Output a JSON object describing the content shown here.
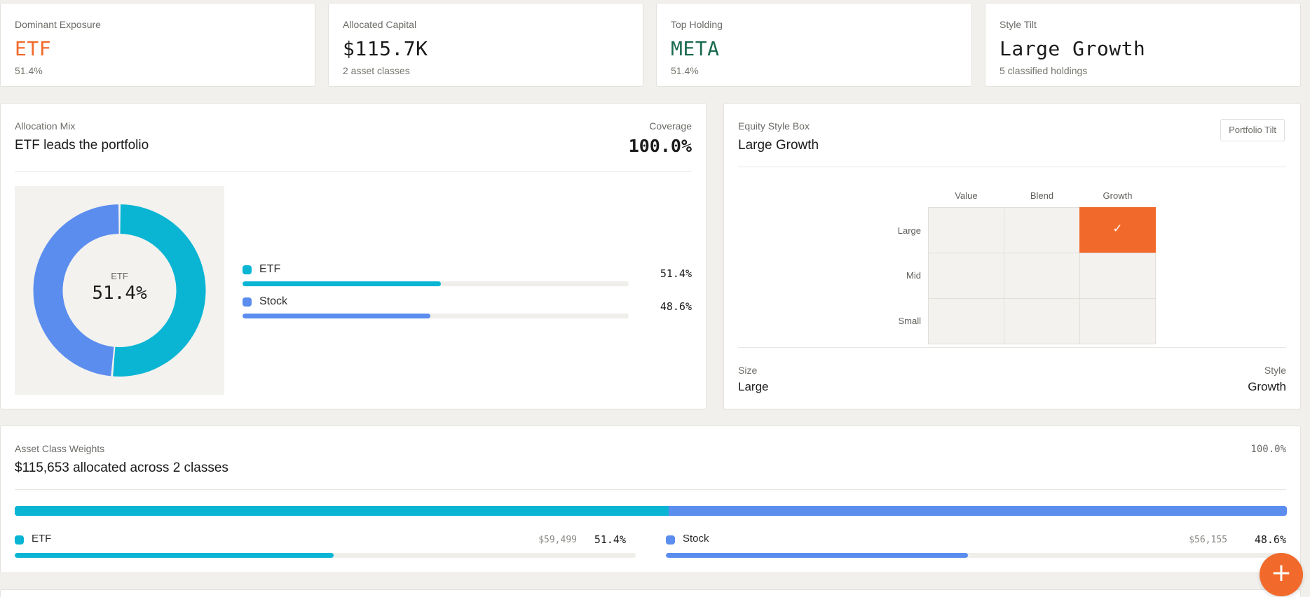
{
  "colors": {
    "accent": "#f26a2b",
    "meta_green": "#1a6b4f",
    "etf": "#0ab5d4",
    "stock": "#5b8def"
  },
  "kpis": [
    {
      "label": "Dominant Exposure",
      "value": "ETF",
      "sub": "51.4%",
      "value_color": "#f26a2b"
    },
    {
      "label": "Allocated Capital",
      "value": "$115.7K",
      "sub": "2 asset classes",
      "value_color": "#1b1b1b"
    },
    {
      "label": "Top Holding",
      "value": "META",
      "sub": "51.4%",
      "value_color": "#1a6b4f"
    },
    {
      "label": "Style Tilt",
      "value": "Large Growth",
      "sub": "5 classified holdings",
      "value_color": "#1b1b1b"
    }
  ],
  "allocation": {
    "label": "Allocation Mix",
    "title": "ETF leads the portfolio",
    "coverage_label": "Coverage",
    "coverage_value": "100.0%",
    "donut_center_label": "ETF",
    "donut_center_value": "51.4%",
    "items": [
      {
        "name": "ETF",
        "pct": "51.4%",
        "fraction": 0.514,
        "color": "#0ab5d4"
      },
      {
        "name": "Stock",
        "pct": "48.6%",
        "fraction": 0.486,
        "color": "#5b8def"
      }
    ]
  },
  "style_box": {
    "label": "Equity Style Box",
    "title": "Large Growth",
    "button": "Portfolio Tilt",
    "columns": [
      "Value",
      "Blend",
      "Growth"
    ],
    "rows": [
      "Large",
      "Mid",
      "Small"
    ],
    "active": {
      "row": "Large",
      "col": "Growth"
    },
    "check_glyph": "✓",
    "size_label": "Size",
    "size_value": "Large",
    "style_label": "Style",
    "style_value": "Growth"
  },
  "weights": {
    "label": "Asset Class Weights",
    "title": "$115,653 allocated across 2 classes",
    "total_pct": "100.0%",
    "items": [
      {
        "name": "ETF",
        "amount": "$59,499",
        "pct": "51.4%",
        "fraction": 0.514,
        "color": "#0ab5d4"
      },
      {
        "name": "Stock",
        "amount": "$56,155",
        "pct": "48.6%",
        "fraction": 0.486,
        "color": "#5b8def"
      }
    ]
  },
  "fab": {
    "icon": "plus-icon",
    "glyph": "+"
  }
}
